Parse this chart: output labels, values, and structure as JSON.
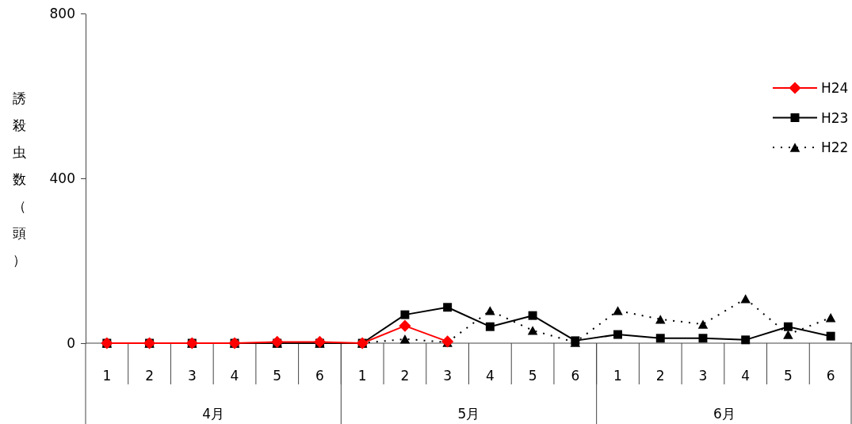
{
  "chart_data": {
    "type": "line",
    "ylabel": "誘殺虫数（頭）",
    "categories": [
      "1",
      "2",
      "3",
      "4",
      "5",
      "6",
      "1",
      "2",
      "3",
      "4",
      "5",
      "6",
      "1",
      "2",
      "3",
      "4",
      "5",
      "6"
    ],
    "annotations": [
      "4月",
      "5月",
      "6月"
    ],
    "ylim": [
      0,
      800
    ],
    "yticks": [
      0,
      400,
      800
    ],
    "grid": false,
    "legend": "top right",
    "series": [
      {
        "name": "H24",
        "color": "#ff0000",
        "marker": "diamond",
        "line_style": "solid",
        "values": [
          0,
          0,
          0,
          0,
          3,
          3,
          0,
          42,
          4,
          null,
          null,
          null,
          null,
          null,
          null,
          null,
          null,
          null
        ]
      },
      {
        "name": "H23",
        "color": "#000000",
        "marker": "square",
        "line_style": "solid",
        "values": [
          0,
          0,
          0,
          0,
          0,
          0,
          0,
          69,
          87,
          40,
          67,
          6,
          21,
          12,
          12,
          8,
          40,
          17
        ]
      },
      {
        "name": "H22",
        "color": "#000000",
        "marker": "triangle",
        "line_style": "dotted",
        "values": [
          0,
          0,
          0,
          0,
          0,
          0,
          0,
          10,
          2,
          79,
          31,
          2,
          79,
          58,
          46,
          108,
          21,
          62
        ]
      }
    ]
  }
}
